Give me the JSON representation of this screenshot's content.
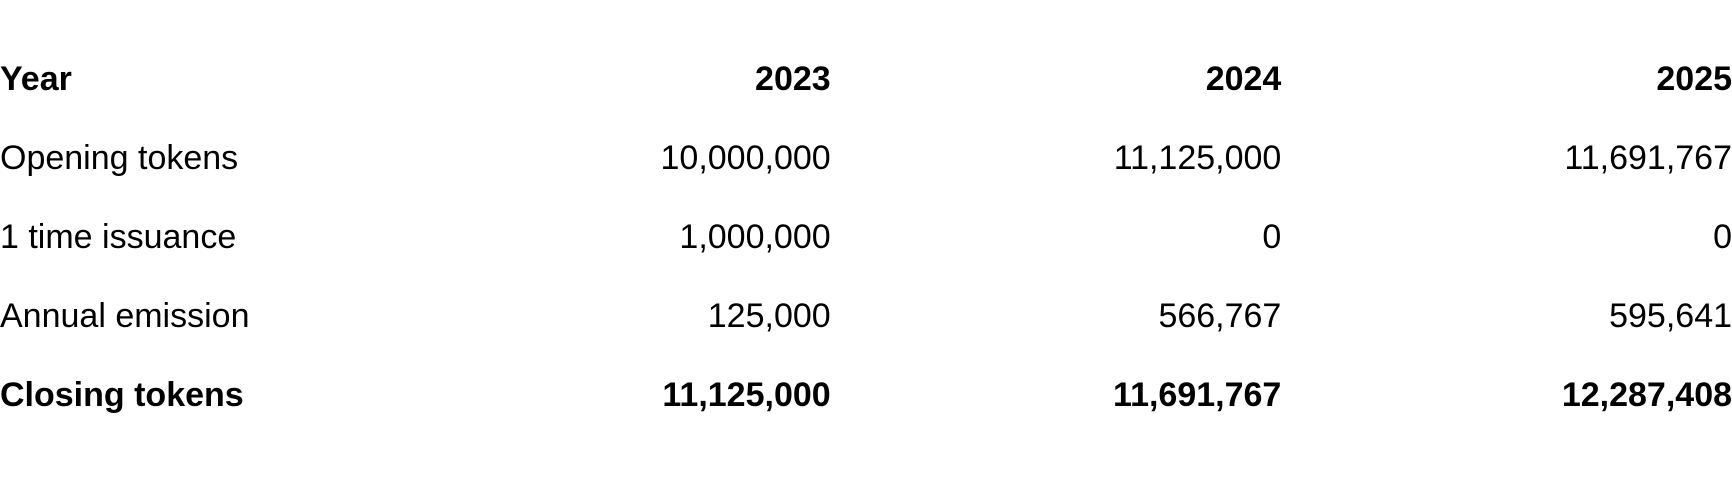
{
  "table": {
    "header": {
      "label": "Year",
      "columns": [
        "2023",
        "2024",
        "2025"
      ]
    },
    "rows": [
      {
        "label": "Opening tokens",
        "values": [
          "10,000,000",
          "11,125,000",
          "11,691,767"
        ]
      },
      {
        "label": "1 time issuance",
        "values": [
          "1,000,000",
          "0",
          "0"
        ]
      },
      {
        "label": "Annual emission",
        "values": [
          "125,000",
          "566,767",
          "595,641"
        ]
      }
    ],
    "footer": {
      "label": "Closing tokens",
      "values": [
        "11,125,000",
        "11,691,767",
        "12,287,408"
      ]
    },
    "styling": {
      "background_color": "#ffffff",
      "text_color": "#000000",
      "font_size": 34,
      "header_font_weight": 700,
      "footer_font_weight": 700,
      "body_font_weight": 400,
      "label_column_width": 380,
      "column_count": 3,
      "row_padding_vertical": 20
    }
  }
}
